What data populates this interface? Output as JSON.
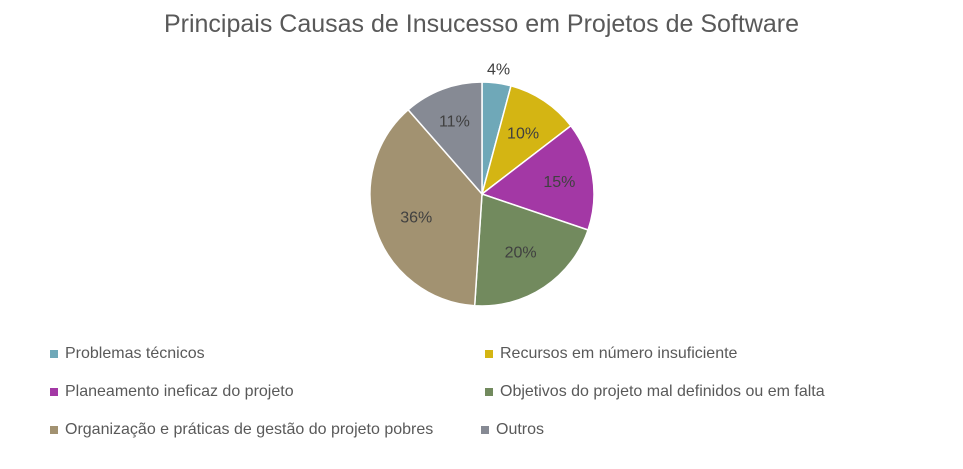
{
  "chart_data": {
    "type": "pie",
    "title": "Principais Causas de Insucesso em Projetos de Software",
    "legend_position": "bottom",
    "slices": [
      {
        "label": "Problemas técnicos",
        "value": 4,
        "display": "4%",
        "color": "#6FA8B8"
      },
      {
        "label": "Recursos em número insuficiente",
        "value": 10,
        "display": "10%",
        "color": "#D4B513"
      },
      {
        "label": "Planeamento ineficaz do projeto",
        "value": 15,
        "display": "15%",
        "color": "#A338A5"
      },
      {
        "label": "Objetivos do projeto mal definidos ou em falta",
        "value": 20,
        "display": "20%",
        "color": "#728A5E"
      },
      {
        "label": "Organização e práticas de gestão do projeto pobres",
        "value": 36,
        "display": "36%",
        "color": "#A29271"
      },
      {
        "label": "Outros",
        "value": 11,
        "display": "11%",
        "color": "#868A94"
      }
    ]
  }
}
